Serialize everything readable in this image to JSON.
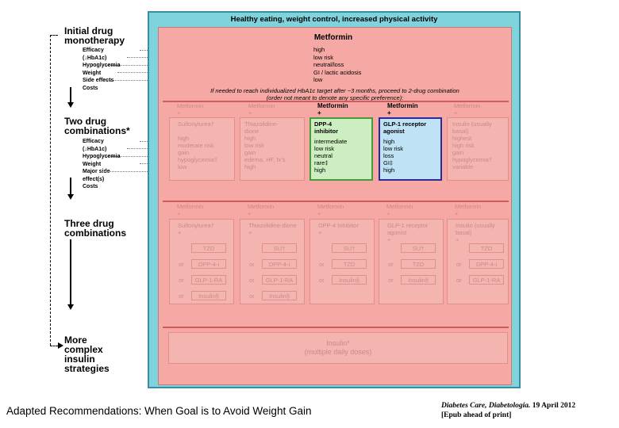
{
  "header": "Healthy eating, weight control, increased physical activity",
  "steps": {
    "mono": {
      "title_1": "Initial drug",
      "title_2": "monotherapy",
      "rows": [
        "Efficacy (↓HbA1c)",
        "Hypoglycemia",
        "Weight",
        "Side effects",
        "Costs"
      ]
    },
    "two": {
      "title_1": "Two drug",
      "title_2": "combinations*",
      "rows": [
        "Efficacy (↓HbA1c)",
        "Hypoglycemia",
        "Weight",
        "Major side effect(s)",
        "Costs"
      ]
    },
    "three": {
      "title_1": "Three drug",
      "title_2": "combinations"
    },
    "complex": {
      "title_1": "More complex",
      "title_2": "insulin strategies"
    }
  },
  "metformin": {
    "title": "Metformin",
    "values": [
      "high",
      "low risk",
      "neutral/loss",
      "GI / lactic acidosis",
      "low"
    ]
  },
  "note_1": "If needed to reach individualized HbA1c target after ~3 months, proceed to 2-drug combination",
  "note_2": "(order not meant to denote any specific preference):",
  "two_cols": [
    {
      "head": "Metformin",
      "plus": "+",
      "agent": "Sulfonylurea†",
      "values": [
        "high",
        "moderate risk",
        "gain",
        "hypoglycemia†",
        "low"
      ]
    },
    {
      "head": "Metformin",
      "plus": "+",
      "agent": "Thiazolidine-dione",
      "values": [
        "high",
        "low risk",
        "gain",
        "edema, HF, fx's",
        "high"
      ]
    },
    {
      "head": "Metformin",
      "plus": "+",
      "agent": "DPP-4 inhibitor",
      "values": [
        "intermediate",
        "low risk",
        "neutral",
        "rare‡",
        "high"
      ]
    },
    {
      "head": "Metformin",
      "plus": "+",
      "agent": "GLP-1 receptor agonist",
      "values": [
        "high",
        "low risk",
        "loss",
        "GI‡",
        "high"
      ]
    },
    {
      "head": "Metformin",
      "plus": "+",
      "agent": "Insulin (usually basal)",
      "values": [
        "highest",
        "high risk",
        "gain",
        "hypoglycemia†",
        "variable"
      ]
    }
  ],
  "three_cols": [
    {
      "head": "Metformin",
      "plus": "+",
      "agent": "Sulfonylurea†",
      "plus2": "+",
      "options": [
        "TZD",
        "DPP-4-i",
        "GLP-1-RA",
        "Insulin§"
      ]
    },
    {
      "head": "Metformin",
      "plus": "+",
      "agent": "Thiazolidine-dione",
      "plus2": "+",
      "options": [
        "SU†",
        "DPP-4-i",
        "GLP-1-RA",
        "Insulin§"
      ]
    },
    {
      "head": "Metformin",
      "plus": "+",
      "agent": "DPP-4 Inhibitor",
      "plus2": "+",
      "options": [
        "SU†",
        "TZD",
        "Insulin§"
      ]
    },
    {
      "head": "Metformin",
      "plus": "+",
      "agent": "GLP-1 receptor agonist",
      "plus2": "+",
      "options": [
        "SU†",
        "TZD",
        "Insulin§"
      ]
    },
    {
      "head": "Metformin",
      "plus": "+",
      "agent": "Insulin (usually basal)",
      "plus2": "+",
      "options": [
        "TZD",
        "DPP-4-i",
        "GLP-1-RA"
      ]
    }
  ],
  "or_label": "or",
  "insulin_box": {
    "line_1": "Insulin*",
    "line_2": "(multiple daily doses)"
  },
  "footer": {
    "title": "Adapted Recommendations: When Goal is to Avoid Weight Gain",
    "journal": "Diabetes Care, Diabetologia.",
    "date": "19 April 2012",
    "epub": "[Epub ahead of print]"
  },
  "colors": {
    "frame": "#7fd3dd",
    "panel": "#f6a9a4",
    "dpp4_fill": "#cdeec0",
    "dpp4_border": "#4a9a3a",
    "glp1_fill": "#bfe2f5",
    "glp1_border": "#2a2a9a"
  }
}
